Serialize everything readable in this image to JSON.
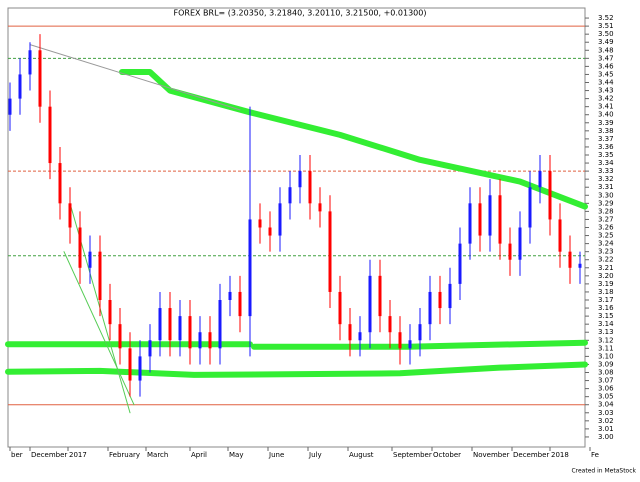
{
  "chart_data": {
    "type": "candlestick",
    "title": "FOREX BRL= (3.20350, 3.21840, 3.20110, 3.21500, +0.01300)",
    "footer": "Created in MetaStock",
    "up_color": "#1a1aff",
    "down_color": "#ff0000",
    "xlim": [
      0,
      288.5
    ],
    "ylim": [
      2.99,
      3.53
    ],
    "xticks": [
      {
        "value": 1,
        "label": "ber"
      },
      {
        "value": 11,
        "label": "December"
      },
      {
        "value": 30,
        "label": "2017"
      },
      {
        "value": 50,
        "label": "February"
      },
      {
        "value": 69,
        "label": "March"
      },
      {
        "value": 91,
        "label": "April"
      },
      {
        "value": 110,
        "label": "May"
      },
      {
        "value": 130,
        "label": "June"
      },
      {
        "value": 150,
        "label": "July"
      },
      {
        "value": 170,
        "label": "August"
      },
      {
        "value": 192,
        "label": "September"
      },
      {
        "value": 212,
        "label": "October"
      },
      {
        "value": 232,
        "label": "November"
      },
      {
        "value": 252,
        "label": "December"
      },
      {
        "value": 271,
        "label": "2018"
      },
      {
        "value": 291,
        "label": "Fe"
      }
    ],
    "yticks": [
      3.52,
      3.51,
      {
        "value": 3.5,
        "label": "3.50"
      },
      3.49,
      3.48,
      3.47,
      3.46,
      3.45,
      3.44,
      3.43,
      3.42,
      3.41,
      {
        "value": 3.4,
        "label": "3.40"
      },
      3.39,
      3.38,
      3.37,
      3.36,
      3.35,
      3.34,
      3.33,
      3.32,
      3.31,
      {
        "value": 3.3,
        "label": "3.30"
      },
      3.29,
      3.28,
      3.27,
      3.26,
      3.25,
      3.24,
      3.23,
      3.22,
      3.21,
      {
        "value": 3.2,
        "label": "3.20"
      },
      3.19,
      3.18,
      3.17,
      3.16,
      3.15,
      3.14,
      3.13,
      3.12,
      3.11,
      {
        "value": 3.1,
        "label": "3.10"
      },
      3.09,
      3.08,
      3.07,
      3.06,
      3.05,
      3.04,
      3.03,
      3.02,
      3.01,
      {
        "value": 3.0,
        "label": "3.00"
      }
    ],
    "x": [
      1,
      6,
      11,
      16,
      21,
      26,
      31,
      36,
      41,
      46,
      51,
      56,
      61,
      66,
      71,
      76,
      81,
      86,
      91,
      96,
      101,
      106,
      111,
      116,
      121,
      126,
      131,
      136,
      141,
      146,
      151,
      156,
      161,
      166,
      171,
      176,
      181,
      186,
      191,
      196,
      201,
      206,
      211,
      216,
      221,
      226,
      231,
      236,
      241,
      246,
      251,
      256,
      261,
      266,
      271,
      276,
      281,
      286
    ],
    "open": [
      3.4,
      3.42,
      3.45,
      3.48,
      3.41,
      3.34,
      3.29,
      3.26,
      3.21,
      3.23,
      3.17,
      3.14,
      3.11,
      3.07,
      3.1,
      3.12,
      3.16,
      3.12,
      3.15,
      3.11,
      3.13,
      3.11,
      3.17,
      3.18,
      3.15,
      3.27,
      3.26,
      3.25,
      3.29,
      3.31,
      3.33,
      3.29,
      3.28,
      3.18,
      3.14,
      3.12,
      3.13,
      3.2,
      3.15,
      3.13,
      3.11,
      3.12,
      3.14,
      3.18,
      3.16,
      3.19,
      3.24,
      3.29,
      3.25,
      3.3,
      3.24,
      3.22,
      3.26,
      3.31,
      3.33,
      3.27,
      3.23,
      3.21
    ],
    "high": [
      3.44,
      3.47,
      3.49,
      3.5,
      3.43,
      3.36,
      3.31,
      3.28,
      3.25,
      3.25,
      3.19,
      3.16,
      3.13,
      3.12,
      3.14,
      3.18,
      3.18,
      3.17,
      3.17,
      3.15,
      3.15,
      3.19,
      3.2,
      3.2,
      3.41,
      3.29,
      3.28,
      3.31,
      3.33,
      3.35,
      3.35,
      3.31,
      3.3,
      3.2,
      3.16,
      3.15,
      3.22,
      3.22,
      3.17,
      3.15,
      3.14,
      3.16,
      3.2,
      3.2,
      3.21,
      3.26,
      3.31,
      3.31,
      3.32,
      3.32,
      3.26,
      3.28,
      3.33,
      3.35,
      3.35,
      3.29,
      3.25,
      3.23
    ],
    "low": [
      3.38,
      3.4,
      3.43,
      3.39,
      3.32,
      3.27,
      3.24,
      3.19,
      3.19,
      3.15,
      3.12,
      3.09,
      3.05,
      3.05,
      3.08,
      3.1,
      3.1,
      3.1,
      3.09,
      3.09,
      3.09,
      3.09,
      3.15,
      3.13,
      3.1,
      3.24,
      3.23,
      3.23,
      3.27,
      3.29,
      3.27,
      3.26,
      3.16,
      3.12,
      3.1,
      3.1,
      3.11,
      3.13,
      3.11,
      3.09,
      3.09,
      3.1,
      3.12,
      3.14,
      3.14,
      3.17,
      3.22,
      3.23,
      3.23,
      3.22,
      3.2,
      3.2,
      3.24,
      3.29,
      3.25,
      3.21,
      3.19,
      3.19
    ],
    "close": [
      3.42,
      3.45,
      3.48,
      3.41,
      3.34,
      3.29,
      3.26,
      3.21,
      3.23,
      3.17,
      3.14,
      3.11,
      3.07,
      3.1,
      3.12,
      3.16,
      3.12,
      3.15,
      3.11,
      3.13,
      3.11,
      3.17,
      3.18,
      3.15,
      3.27,
      3.26,
      3.25,
      3.29,
      3.31,
      3.33,
      3.29,
      3.28,
      3.18,
      3.14,
      3.12,
      3.13,
      3.2,
      3.15,
      3.13,
      3.11,
      3.12,
      3.14,
      3.18,
      3.16,
      3.19,
      3.24,
      3.29,
      3.25,
      3.3,
      3.24,
      3.22,
      3.26,
      3.31,
      3.33,
      3.27,
      3.23,
      3.21,
      3.215
    ],
    "hlines": [
      {
        "value": 3.51,
        "color": "#e06040",
        "dashed": false
      },
      {
        "value": 3.47,
        "color": "#40a040",
        "dashed": true
      },
      {
        "value": 3.33,
        "color": "#e06040",
        "dashed": true
      },
      {
        "value": 3.225,
        "color": "#40a040",
        "dashed": true
      },
      {
        "value": 3.04,
        "color": "#e06040",
        "dashed": false
      }
    ],
    "trendlines": [
      {
        "color": "#33ee33",
        "width": 6,
        "x": [
          57,
          71,
          81,
          121,
          166,
          206,
          256,
          288.5
        ],
        "values": [
          3.453,
          3.453,
          3.43,
          3.403,
          3.375,
          3.344,
          3.317,
          3.286
        ]
      },
      {
        "color": "#33ee33",
        "width": 6,
        "x": [
          0,
          121
        ],
        "values": [
          3.115,
          3.115
        ]
      },
      {
        "color": "#33ee33",
        "width": 6,
        "x": [
          123,
          200,
          288.5
        ],
        "values": [
          3.112,
          3.112,
          3.117
        ]
      },
      {
        "color": "#33ee33",
        "width": 6,
        "x": [
          0,
          46,
          93,
          196,
          246,
          288.5
        ],
        "values": [
          3.081,
          3.082,
          3.077,
          3.079,
          3.086,
          3.09
        ]
      },
      {
        "color": "#999999",
        "width": 1,
        "x": [
          11,
          116
        ],
        "values": [
          3.487,
          3.406
        ]
      },
      {
        "color": "#55cc55",
        "width": 1,
        "x": [
          31,
          61
        ],
        "values": [
          3.29,
          3.03
        ]
      },
      {
        "color": "#55cc55",
        "width": 1,
        "x": [
          28,
          63
        ],
        "values": [
          3.23,
          3.04
        ]
      }
    ]
  }
}
